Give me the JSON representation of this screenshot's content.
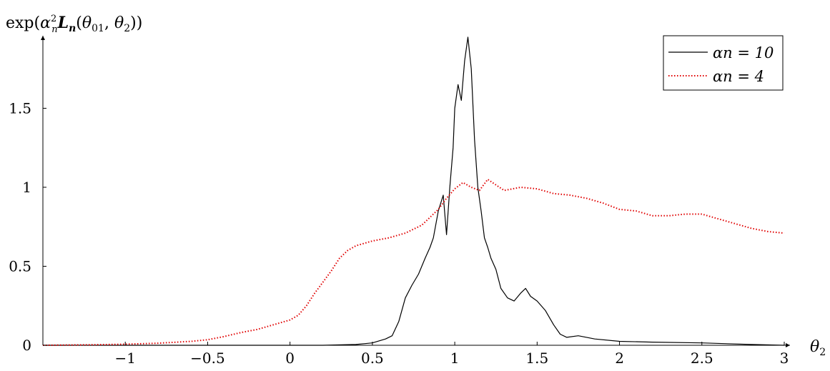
{
  "chart_data": {
    "type": "line",
    "title": "",
    "xlabel": "θ2",
    "ylabel": "exp(α²n Ln(θ01, θ2))",
    "xlim": [
      -1.5,
      3
    ],
    "ylim": [
      0,
      1.95
    ],
    "x_ticks": [
      -1,
      -0.5,
      0,
      0.5,
      1,
      1.5,
      2,
      2.5,
      3
    ],
    "x_tick_labels": [
      "−1",
      "−0.5",
      "0",
      "0.5",
      "1",
      "1.5",
      "2",
      "2.5",
      "3"
    ],
    "y_ticks": [
      0,
      0.5,
      1,
      1.5
    ],
    "y_tick_labels": [
      "0",
      "0.5",
      "1",
      "1.5"
    ],
    "legend_position": "top-right",
    "grid": false,
    "series": [
      {
        "name": "αn = 10",
        "color": "#000000",
        "style": "solid",
        "x": [
          -1.5,
          0.2,
          0.4,
          0.5,
          0.58,
          0.62,
          0.66,
          0.7,
          0.74,
          0.78,
          0.82,
          0.85,
          0.87,
          0.9,
          0.93,
          0.95,
          0.97,
          0.99,
          1.0,
          1.02,
          1.04,
          1.06,
          1.08,
          1.1,
          1.12,
          1.14,
          1.16,
          1.18,
          1.2,
          1.22,
          1.25,
          1.28,
          1.32,
          1.36,
          1.4,
          1.43,
          1.46,
          1.5,
          1.55,
          1.6,
          1.64,
          1.68,
          1.75,
          1.85,
          2.0,
          2.2,
          2.5,
          2.8,
          3.0
        ],
        "y": [
          0,
          0,
          0.005,
          0.015,
          0.04,
          0.06,
          0.15,
          0.3,
          0.38,
          0.45,
          0.55,
          0.62,
          0.68,
          0.85,
          0.95,
          0.7,
          1.0,
          1.25,
          1.5,
          1.65,
          1.55,
          1.8,
          1.95,
          1.75,
          1.3,
          1.0,
          0.85,
          0.68,
          0.62,
          0.55,
          0.48,
          0.36,
          0.3,
          0.28,
          0.33,
          0.36,
          0.31,
          0.28,
          0.22,
          0.13,
          0.07,
          0.05,
          0.06,
          0.04,
          0.025,
          0.02,
          0.015,
          0.005,
          0.0
        ]
      },
      {
        "name": "αn = 4",
        "color": "#e00000",
        "style": "dotted",
        "x": [
          -1.5,
          -1.2,
          -1.0,
          -0.8,
          -0.6,
          -0.5,
          -0.4,
          -0.3,
          -0.2,
          -0.1,
          0.0,
          0.05,
          0.1,
          0.15,
          0.2,
          0.25,
          0.3,
          0.35,
          0.4,
          0.5,
          0.6,
          0.7,
          0.8,
          0.9,
          0.95,
          1.0,
          1.05,
          1.1,
          1.15,
          1.2,
          1.3,
          1.4,
          1.5,
          1.6,
          1.7,
          1.8,
          1.9,
          2.0,
          2.1,
          2.2,
          2.3,
          2.4,
          2.5,
          2.6,
          2.7,
          2.8,
          2.9,
          3.0
        ],
        "y": [
          0.0,
          0.003,
          0.007,
          0.013,
          0.025,
          0.035,
          0.055,
          0.08,
          0.1,
          0.13,
          0.16,
          0.19,
          0.25,
          0.33,
          0.4,
          0.47,
          0.55,
          0.6,
          0.63,
          0.66,
          0.68,
          0.71,
          0.76,
          0.86,
          0.93,
          0.99,
          1.03,
          1.0,
          0.98,
          1.05,
          0.98,
          1.0,
          0.99,
          0.96,
          0.95,
          0.93,
          0.9,
          0.86,
          0.85,
          0.82,
          0.82,
          0.83,
          0.83,
          0.8,
          0.77,
          0.74,
          0.72,
          0.71
        ]
      }
    ]
  }
}
